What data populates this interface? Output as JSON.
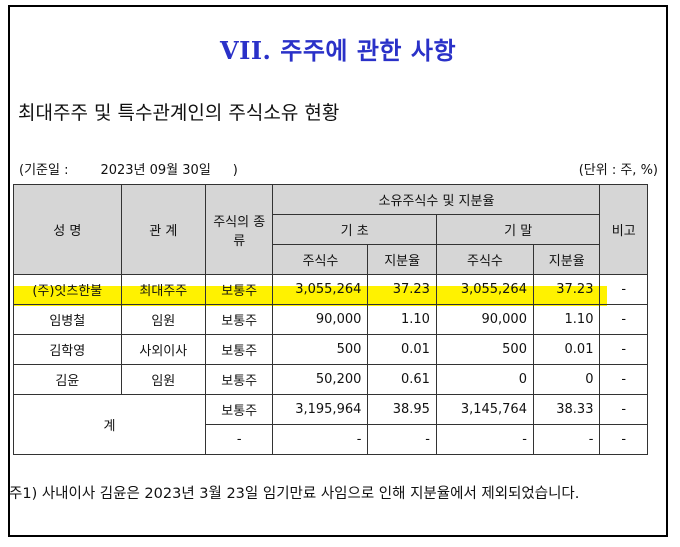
{
  "title": "VII. 주주에 관한 사항",
  "subtitle": "최대주주 및 특수관계인의 주식소유 현황",
  "basis": {
    "label": "(기준일 :",
    "date": "2023년 09월 30일",
    "close": ")"
  },
  "unit": "(단위 : 주, %)",
  "headers": {
    "name": "성 명",
    "relation": "관 계",
    "stock_type": "주식의 종류",
    "group": "소유주식수 및 지분율",
    "begin": "기 초",
    "end": "기 말",
    "shares": "주식수",
    "ratio": "지분율",
    "remark": "비고"
  },
  "rows": [
    {
      "name": "(주)잇츠한불",
      "relation": "최대주주",
      "type": "보통주",
      "begin_shares": "3,055,264",
      "begin_ratio": "37.23",
      "end_shares": "3,055,264",
      "end_ratio": "37.23",
      "remark": "-"
    },
    {
      "name": "임병철",
      "relation": "임원",
      "type": "보통주",
      "begin_shares": "90,000",
      "begin_ratio": "1.10",
      "end_shares": "90,000",
      "end_ratio": "1.10",
      "remark": "-"
    },
    {
      "name": "김학영",
      "relation": "사외이사",
      "type": "보통주",
      "begin_shares": "500",
      "begin_ratio": "0.01",
      "end_shares": "500",
      "end_ratio": "0.01",
      "remark": "-"
    },
    {
      "name": "김윤",
      "relation": "임원",
      "type": "보통주",
      "begin_shares": "50,200",
      "begin_ratio": "0.61",
      "end_shares": "0",
      "end_ratio": "0",
      "remark": "-"
    }
  ],
  "total": {
    "label": "계",
    "rows": [
      {
        "type": "보통주",
        "begin_shares": "3,195,964",
        "begin_ratio": "38.95",
        "end_shares": "3,145,764",
        "end_ratio": "38.33",
        "remark": "-"
      },
      {
        "type": "-",
        "begin_shares": "-",
        "begin_ratio": "-",
        "end_shares": "-",
        "end_ratio": "-",
        "remark": "-"
      }
    ]
  },
  "note": "주1) 사내이사 김윤은 2023년 3월 23일 임기만료 사임으로 인해 지분율에서 제외되었습니다.",
  "colors": {
    "title": "#2a31c8",
    "highlight": "#fff200",
    "header_bg": "#d6d6d6"
  }
}
